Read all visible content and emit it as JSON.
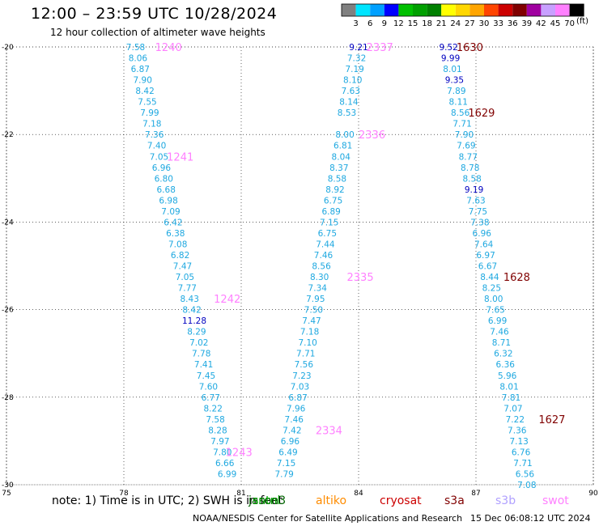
{
  "title": "12:00 – 23:59 UTC 10/28/2024",
  "subtitle": "12 hour collection of altimeter wave heights",
  "note": "note:  1) Time is in UTC; 2) SWH is in feet",
  "credit": "NOAA/NESDIS Center for Satellite Applications and Research",
  "timestamp": "15 Dec 06:08:12 UTC 2024",
  "color_scale": {
    "unit": "(ft)",
    "labels": [
      "3",
      "6",
      "9",
      "12",
      "15",
      "18",
      "21",
      "24",
      "27",
      "30",
      "33",
      "36",
      "39",
      "42",
      "45",
      "70"
    ],
    "colors": [
      "#808080",
      "#00e5ff",
      "#00a0ff",
      "#0000ff",
      "#00c000",
      "#00a000",
      "#008000",
      "#ffff00",
      "#ffd700",
      "#ffa500",
      "#ff4500",
      "#cc0000",
      "#800000",
      "#a000a0",
      "#c8a0ff",
      "#ff80ff",
      "#000000"
    ]
  },
  "satellites": [
    {
      "name": "jason3",
      "color": "#006400"
    },
    {
      "name": "sntnl",
      "color": "#00a000"
    },
    {
      "name": "altiko",
      "color": "#ff8c00"
    },
    {
      "name": "cryosat",
      "color": "#cc0000"
    },
    {
      "name": "s3a",
      "color": "#800000"
    },
    {
      "name": "s3b",
      "color": "#b0a0ff"
    },
    {
      "name": "swot",
      "color": "#ff80ff"
    }
  ],
  "chart_data": {
    "type": "scatter",
    "title": "12:00 – 23:59 UTC 10/28/2024",
    "subtitle": "12 hour collection of altimeter wave heights",
    "xlim": [
      75,
      90
    ],
    "ylim": [
      -30,
      -20
    ],
    "xticks": [
      75,
      78,
      81,
      84,
      87,
      90
    ],
    "yticks": [
      -20,
      -22,
      -24,
      -26,
      -28,
      -30
    ],
    "grid": true,
    "default_value_color": "#1ea8e0",
    "tracks": [
      {
        "pass_label": "1240",
        "satellite": "swot",
        "points": [
          {
            "x": 78.3,
            "y": -20.0,
            "value": "7.58"
          },
          {
            "x": 78.36,
            "y": -20.25,
            "value": "8.06"
          },
          {
            "x": 78.42,
            "y": -20.5,
            "value": "6.87"
          },
          {
            "x": 78.48,
            "y": -20.75,
            "value": "7.90"
          },
          {
            "x": 78.54,
            "y": -21.0,
            "value": "8.42"
          },
          {
            "x": 78.6,
            "y": -21.25,
            "value": "7.55"
          },
          {
            "x": 78.66,
            "y": -21.5,
            "value": "7.99"
          },
          {
            "x": 78.72,
            "y": -21.75,
            "value": "7.18"
          },
          {
            "x": 78.78,
            "y": -22.0,
            "value": "7.36"
          },
          {
            "x": 78.84,
            "y": -22.25,
            "value": "7.40"
          },
          {
            "x": 78.9,
            "y": -22.5,
            "value": "7.05"
          },
          {
            "x": 78.96,
            "y": -22.75,
            "value": "6.96"
          },
          {
            "x": 79.02,
            "y": -23.0,
            "value": "6.80"
          },
          {
            "x": 79.08,
            "y": -23.25,
            "value": "6.68"
          },
          {
            "x": 79.14,
            "y": -23.5,
            "value": "6.98"
          },
          {
            "x": 79.2,
            "y": -23.75,
            "value": "7.09"
          },
          {
            "x": 79.26,
            "y": -24.0,
            "value": "6.42"
          },
          {
            "x": 79.32,
            "y": -24.25,
            "value": "6.38"
          },
          {
            "x": 79.38,
            "y": -24.5,
            "value": "7.08"
          },
          {
            "x": 79.44,
            "y": -24.75,
            "value": "6.82"
          },
          {
            "x": 79.5,
            "y": -25.0,
            "value": "7.47"
          },
          {
            "x": 79.56,
            "y": -25.25,
            "value": "7.05"
          },
          {
            "x": 79.62,
            "y": -25.5,
            "value": "7.77"
          },
          {
            "x": 79.68,
            "y": -25.75,
            "value": "8.43"
          },
          {
            "x": 79.74,
            "y": -26.0,
            "value": "8.42"
          },
          {
            "x": 79.8,
            "y": -26.25,
            "value": "11.28",
            "color": "#0000c0"
          },
          {
            "x": 79.86,
            "y": -26.5,
            "value": "8.29"
          },
          {
            "x": 79.92,
            "y": -26.75,
            "value": "7.02"
          },
          {
            "x": 79.98,
            "y": -27.0,
            "value": "7.78"
          },
          {
            "x": 80.04,
            "y": -27.25,
            "value": "7.41"
          },
          {
            "x": 80.1,
            "y": -27.5,
            "value": "7.45"
          },
          {
            "x": 80.16,
            "y": -27.75,
            "value": "7.60"
          },
          {
            "x": 80.22,
            "y": -28.0,
            "value": "6.77"
          },
          {
            "x": 80.28,
            "y": -28.25,
            "value": "8.22"
          },
          {
            "x": 80.34,
            "y": -28.5,
            "value": "7.58"
          },
          {
            "x": 80.4,
            "y": -28.75,
            "value": "8.28"
          },
          {
            "x": 80.46,
            "y": -29.0,
            "value": "7.97"
          },
          {
            "x": 80.52,
            "y": -29.25,
            "value": "7.80"
          },
          {
            "x": 80.58,
            "y": -29.5,
            "value": "6.66"
          },
          {
            "x": 80.64,
            "y": -29.75,
            "value": "6.99"
          }
        ]
      },
      {
        "pass_label": "2337",
        "satellite": "swot",
        "points": [
          {
            "x": 84.0,
            "y": -20.0,
            "value": "9.21",
            "color": "#0000c0"
          },
          {
            "x": 83.95,
            "y": -20.25,
            "value": "7.32"
          },
          {
            "x": 83.9,
            "y": -20.5,
            "value": "7.19"
          },
          {
            "x": 83.85,
            "y": -20.75,
            "value": "8.10"
          },
          {
            "x": 83.8,
            "y": -21.0,
            "value": "7.63"
          },
          {
            "x": 83.75,
            "y": -21.25,
            "value": "8.14"
          },
          {
            "x": 83.7,
            "y": -21.5,
            "value": "8.53"
          },
          {
            "x": 83.65,
            "y": -22.0,
            "value": "8.00"
          },
          {
            "x": 83.6,
            "y": -22.25,
            "value": "6.81"
          },
          {
            "x": 83.55,
            "y": -22.5,
            "value": "8.04"
          },
          {
            "x": 83.5,
            "y": -22.75,
            "value": "8.37"
          },
          {
            "x": 83.45,
            "y": -23.0,
            "value": "8.58"
          },
          {
            "x": 83.4,
            "y": -23.25,
            "value": "8.92"
          },
          {
            "x": 83.35,
            "y": -23.5,
            "value": "6.75"
          },
          {
            "x": 83.3,
            "y": -23.75,
            "value": "6.89"
          },
          {
            "x": 83.25,
            "y": -24.0,
            "value": "7.15"
          },
          {
            "x": 83.2,
            "y": -24.25,
            "value": "6.75"
          },
          {
            "x": 83.15,
            "y": -24.5,
            "value": "7.44"
          },
          {
            "x": 83.1,
            "y": -24.75,
            "value": "7.46"
          },
          {
            "x": 83.05,
            "y": -25.0,
            "value": "8.56"
          },
          {
            "x": 83.0,
            "y": -25.25,
            "value": "8.30"
          },
          {
            "x": 82.95,
            "y": -25.5,
            "value": "7.34"
          },
          {
            "x": 82.9,
            "y": -25.75,
            "value": "7.95"
          },
          {
            "x": 82.85,
            "y": -26.0,
            "value": "7.50"
          },
          {
            "x": 82.8,
            "y": -26.25,
            "value": "7.47"
          },
          {
            "x": 82.75,
            "y": -26.5,
            "value": "7.18"
          },
          {
            "x": 82.7,
            "y": -26.75,
            "value": "7.10"
          },
          {
            "x": 82.65,
            "y": -27.0,
            "value": "7.71"
          },
          {
            "x": 82.6,
            "y": -27.25,
            "value": "7.56"
          },
          {
            "x": 82.55,
            "y": -27.5,
            "value": "7.23"
          },
          {
            "x": 82.5,
            "y": -27.75,
            "value": "7.03"
          },
          {
            "x": 82.45,
            "y": -28.0,
            "value": "6.87"
          },
          {
            "x": 82.4,
            "y": -28.25,
            "value": "7.96"
          },
          {
            "x": 82.35,
            "y": -28.5,
            "value": "7.46"
          },
          {
            "x": 82.3,
            "y": -28.75,
            "value": "7.42"
          },
          {
            "x": 82.25,
            "y": -29.0,
            "value": "6.96"
          },
          {
            "x": 82.2,
            "y": -29.25,
            "value": "6.49"
          },
          {
            "x": 82.15,
            "y": -29.5,
            "value": "7.15"
          },
          {
            "x": 82.1,
            "y": -29.75,
            "value": "7.79"
          }
        ]
      },
      {
        "pass_label": "1630",
        "satellite": "s3a",
        "points": [
          {
            "x": 86.3,
            "y": -20.0,
            "value": "9.52",
            "color": "#0000c0"
          },
          {
            "x": 86.35,
            "y": -20.25,
            "value": "9.99",
            "color": "#0000c0"
          },
          {
            "x": 86.4,
            "y": -20.5,
            "value": "8.01"
          },
          {
            "x": 86.45,
            "y": -20.75,
            "value": "9.35",
            "color": "#0000c0"
          },
          {
            "x": 86.5,
            "y": -21.0,
            "value": "7.89"
          },
          {
            "x": 86.55,
            "y": -21.25,
            "value": "8.11"
          },
          {
            "x": 86.6,
            "y": -21.5,
            "value": "8.56"
          },
          {
            "x": 86.65,
            "y": -21.75,
            "value": "7.71"
          },
          {
            "x": 86.7,
            "y": -22.0,
            "value": "7.90"
          },
          {
            "x": 86.75,
            "y": -22.25,
            "value": "7.69"
          },
          {
            "x": 86.8,
            "y": -22.5,
            "value": "8.77"
          },
          {
            "x": 86.85,
            "y": -22.75,
            "value": "8.78"
          },
          {
            "x": 86.9,
            "y": -23.0,
            "value": "8.58"
          },
          {
            "x": 86.95,
            "y": -23.25,
            "value": "9.19",
            "color": "#0000c0"
          },
          {
            "x": 87.0,
            "y": -23.5,
            "value": "7.63"
          },
          {
            "x": 87.05,
            "y": -23.75,
            "value": "7.75"
          },
          {
            "x": 87.1,
            "y": -24.0,
            "value": "7.38"
          },
          {
            "x": 87.15,
            "y": -24.25,
            "value": "6.96"
          },
          {
            "x": 87.2,
            "y": -24.5,
            "value": "7.64"
          },
          {
            "x": 87.25,
            "y": -24.75,
            "value": "6.97"
          },
          {
            "x": 87.3,
            "y": -25.0,
            "value": "6.67"
          },
          {
            "x": 87.35,
            "y": -25.25,
            "value": "8.44"
          },
          {
            "x": 87.4,
            "y": -25.5,
            "value": "8.25"
          },
          {
            "x": 87.45,
            "y": -25.75,
            "value": "8.00"
          },
          {
            "x": 87.5,
            "y": -26.0,
            "value": "7.65"
          },
          {
            "x": 87.55,
            "y": -26.25,
            "value": "6.99"
          },
          {
            "x": 87.6,
            "y": -26.5,
            "value": "7.46"
          },
          {
            "x": 87.65,
            "y": -26.75,
            "value": "8.71"
          },
          {
            "x": 87.7,
            "y": -27.0,
            "value": "6.32"
          },
          {
            "x": 87.75,
            "y": -27.25,
            "value": "6.36"
          },
          {
            "x": 87.8,
            "y": -27.5,
            "value": "5.96"
          },
          {
            "x": 87.85,
            "y": -27.75,
            "value": "8.01"
          },
          {
            "x": 87.9,
            "y": -28.0,
            "value": "7.81"
          },
          {
            "x": 87.95,
            "y": -28.25,
            "value": "7.07"
          },
          {
            "x": 88.0,
            "y": -28.5,
            "value": "7.22"
          },
          {
            "x": 88.05,
            "y": -28.75,
            "value": "7.36"
          },
          {
            "x": 88.1,
            "y": -29.0,
            "value": "7.13"
          },
          {
            "x": 88.15,
            "y": -29.25,
            "value": "6.76"
          },
          {
            "x": 88.2,
            "y": -29.5,
            "value": "7.71"
          },
          {
            "x": 88.25,
            "y": -29.75,
            "value": "6.56"
          },
          {
            "x": 88.3,
            "y": -30.0,
            "value": "7.08"
          }
        ]
      }
    ],
    "pass_labels": [
      {
        "label": "1240",
        "x": 78.8,
        "y": -20.0,
        "color": "#ff80ff"
      },
      {
        "label": "1241",
        "x": 79.1,
        "y": -22.5,
        "color": "#ff80ff"
      },
      {
        "label": "1242",
        "x": 80.3,
        "y": -25.75,
        "color": "#ff80ff"
      },
      {
        "label": "1243",
        "x": 80.6,
        "y": -29.25,
        "color": "#ff80ff"
      },
      {
        "label": "2337",
        "x": 84.2,
        "y": -20.0,
        "color": "#ff80ff"
      },
      {
        "label": "2336",
        "x": 84.0,
        "y": -22.0,
        "color": "#ff80ff"
      },
      {
        "label": "2335",
        "x": 83.7,
        "y": -25.25,
        "color": "#ff80ff"
      },
      {
        "label": "2334",
        "x": 82.9,
        "y": -28.75,
        "color": "#ff80ff"
      },
      {
        "label": "1630",
        "x": 86.5,
        "y": -20.0,
        "color": "#800000"
      },
      {
        "label": "1629",
        "x": 86.8,
        "y": -21.5,
        "color": "#800000"
      },
      {
        "label": "1628",
        "x": 87.7,
        "y": -25.25,
        "color": "#800000"
      },
      {
        "label": "1627",
        "x": 88.6,
        "y": -28.5,
        "color": "#800000"
      }
    ]
  }
}
